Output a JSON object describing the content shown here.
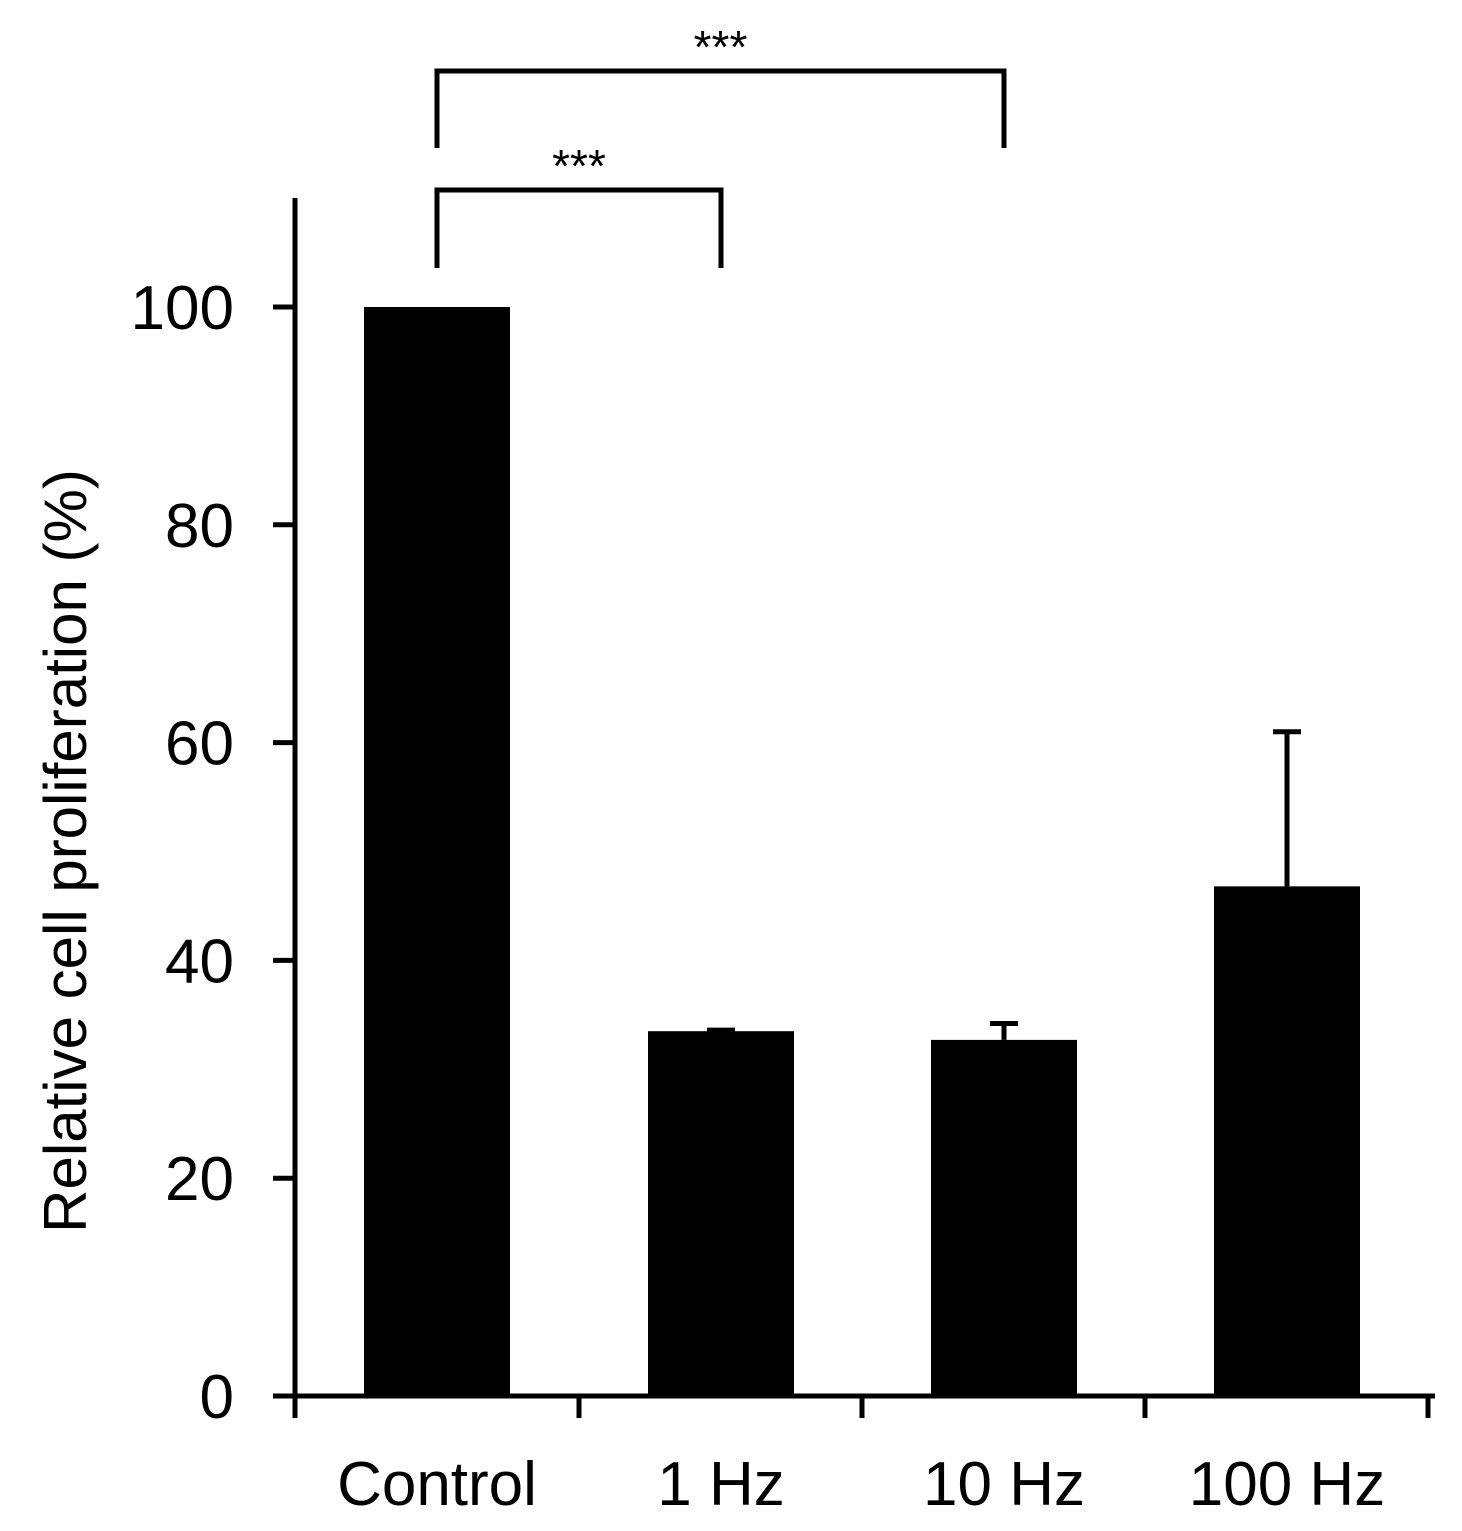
{
  "chart_data": {
    "type": "bar",
    "title": "",
    "xlabel": "",
    "ylabel": "Relative cell proliferation (%)",
    "categories": [
      "Control",
      "1 Hz",
      "10 Hz",
      "100 Hz"
    ],
    "values": [
      100,
      33.5,
      32.7,
      46.8
    ],
    "error_upper": [
      0,
      0.1,
      1.5,
      14.2
    ],
    "ylim": [
      0,
      110
    ],
    "yticks": [
      0,
      20,
      40,
      60,
      80,
      100
    ],
    "ytick_labels": [
      "0",
      "20",
      "40",
      "60",
      "80",
      "100"
    ],
    "bar_color": "#000000",
    "grid": false,
    "legend": "none",
    "significance": [
      {
        "from": "Control",
        "to": "1 Hz",
        "label": "***"
      },
      {
        "from": "Control",
        "to": "10 Hz",
        "label": "***"
      }
    ]
  }
}
